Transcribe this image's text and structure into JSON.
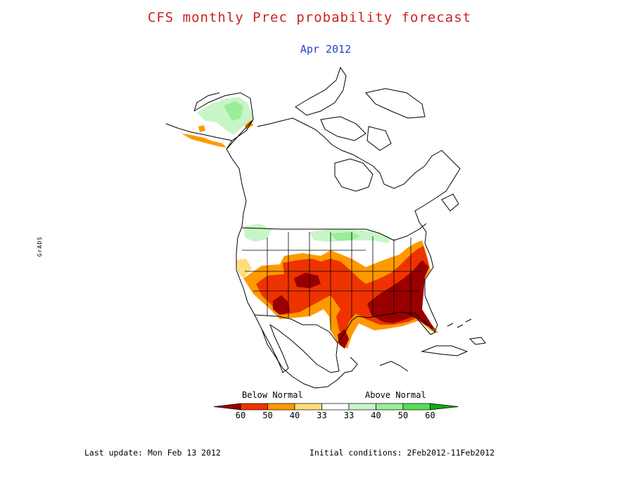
{
  "title": "CFS monthly Prec probability forecast",
  "subtitle": "Apr 2012",
  "colors": {
    "title": "#cc2222",
    "subtitle": "#2244cc",
    "below": [
      "#990000",
      "#ee3300",
      "#ff9900",
      "#ffdd77"
    ],
    "neutral": "#ffffff",
    "above": [
      "#c8f5c8",
      "#99ee99",
      "#55dd55",
      "#11aa11"
    ]
  },
  "legend": {
    "below_label": "Below Normal",
    "above_label": "Above Normal",
    "ticks": [
      "60",
      "50",
      "40",
      "33",
      "33",
      "40",
      "50",
      "60"
    ]
  },
  "footer": {
    "last_update": "Last update: Mon Feb 13 2012",
    "initial_conditions": "Initial conditions: 2Feb2012-11Feb2012"
  },
  "side_text": "GrADS"
}
